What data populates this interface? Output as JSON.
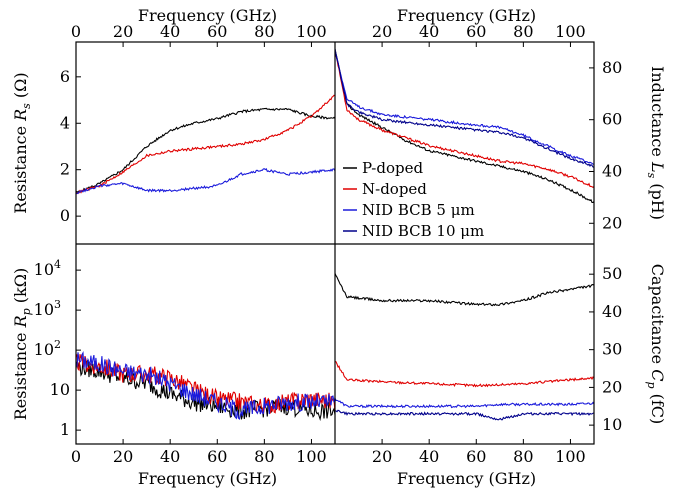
{
  "chart_data": [
    {
      "panel": "top-left",
      "type": "line",
      "xlabel": "Frequency (GHz)",
      "ylabel": "Resistance R_s (Ω)",
      "xlim": [
        0,
        110
      ],
      "ylim": [
        -1.2,
        7.5
      ],
      "xticks": [
        0,
        20,
        40,
        60,
        80,
        100
      ],
      "yticks": [
        0,
        2,
        4,
        6
      ],
      "series": [
        {
          "color": "#000000",
          "x": [
            0,
            10,
            20,
            30,
            40,
            50,
            60,
            70,
            80,
            90,
            100,
            110
          ],
          "y": [
            1.0,
            1.4,
            2.0,
            3.0,
            3.7,
            4.0,
            4.2,
            4.5,
            4.6,
            4.6,
            4.3,
            4.2
          ]
        },
        {
          "color": "#e00000",
          "x": [
            0,
            10,
            20,
            30,
            40,
            50,
            60,
            70,
            80,
            90,
            100,
            110
          ],
          "y": [
            1.0,
            1.3,
            1.9,
            2.6,
            2.8,
            2.9,
            3.0,
            3.1,
            3.3,
            3.7,
            4.3,
            5.2
          ]
        },
        {
          "color": "#1a1adb",
          "x": [
            0,
            10,
            20,
            30,
            40,
            50,
            60,
            70,
            80,
            90,
            100,
            110
          ],
          "y": [
            1.0,
            1.3,
            1.4,
            1.1,
            1.1,
            1.2,
            1.3,
            1.8,
            2.0,
            1.8,
            1.9,
            2.0
          ]
        }
      ]
    },
    {
      "panel": "top-right",
      "type": "line",
      "xlabel": "Frequency (GHz)",
      "ylabel": "Inductance L_s (pH)",
      "xlim": [
        0,
        110
      ],
      "ylim": [
        12,
        90
      ],
      "xticks": [
        20,
        40,
        60,
        80,
        100
      ],
      "yticks": [
        20,
        40,
        60,
        80
      ],
      "series": [
        {
          "name": "P-doped",
          "color": "#000000",
          "x": [
            0,
            5,
            10,
            20,
            30,
            40,
            50,
            60,
            70,
            80,
            90,
            100,
            110
          ],
          "y": [
            87,
            66,
            62,
            57,
            52,
            48,
            46,
            44,
            42,
            40,
            37,
            33,
            28
          ]
        },
        {
          "name": "N-doped",
          "color": "#e00000",
          "x": [
            0,
            5,
            10,
            20,
            30,
            40,
            50,
            60,
            70,
            80,
            90,
            100,
            110
          ],
          "y": [
            87,
            64,
            60,
            56,
            53,
            50,
            48,
            46,
            44,
            43,
            41,
            38,
            34
          ]
        },
        {
          "name": "NID BCB 5 μm",
          "color": "#1a1adb",
          "x": [
            0,
            5,
            10,
            20,
            30,
            40,
            50,
            60,
            70,
            80,
            90,
            100,
            110
          ],
          "y": [
            87,
            68,
            65,
            62,
            61,
            60,
            59,
            58,
            57,
            54,
            50,
            46,
            43
          ]
        },
        {
          "name": "NID BCB 10 μm",
          "color": "#00008b",
          "x": [
            0,
            5,
            10,
            20,
            30,
            40,
            50,
            60,
            70,
            80,
            90,
            100,
            110
          ],
          "y": [
            87,
            66,
            63,
            60,
            59,
            58,
            57,
            56,
            55,
            53,
            49,
            45,
            42
          ]
        }
      ],
      "legend": "bottom-left"
    },
    {
      "panel": "bottom-left",
      "type": "line",
      "xlabel": "Frequency (GHz)",
      "ylabel": "Resistance R_p (kΩ)",
      "xlim": [
        0,
        110
      ],
      "ylim": [
        0.45,
        45000
      ],
      "yscale": "log",
      "xticks": [
        0,
        20,
        40,
        60,
        80,
        100
      ],
      "yticks": [
        1,
        10,
        100,
        1000,
        10000
      ],
      "yticklabels": [
        "1",
        "10",
        "10^2",
        "10^3",
        "10^4"
      ],
      "series": [
        {
          "color": "#000000",
          "x": [
            0,
            10,
            20,
            30,
            40,
            50,
            60,
            70,
            80,
            90,
            100,
            110
          ],
          "y": [
            40,
            30,
            20,
            15,
            8,
            5,
            4,
            3,
            3.5,
            4,
            3,
            3
          ]
        },
        {
          "color": "#e00000",
          "x": [
            0,
            10,
            20,
            30,
            40,
            50,
            60,
            70,
            80,
            90,
            100,
            110
          ],
          "y": [
            50,
            40,
            25,
            25,
            20,
            10,
            6,
            5,
            4,
            5,
            6,
            5
          ]
        },
        {
          "color": "#1a1adb",
          "x": [
            0,
            10,
            20,
            30,
            40,
            50,
            60,
            70,
            80,
            90,
            100,
            110
          ],
          "y": [
            60,
            45,
            30,
            25,
            15,
            8,
            5,
            3,
            4,
            5,
            5,
            5
          ]
        }
      ]
    },
    {
      "panel": "bottom-right",
      "type": "line",
      "xlabel": "Frequency (GHz)",
      "ylabel": "Capacitance C_p (fC)",
      "xlim": [
        0,
        110
      ],
      "ylim": [
        5,
        58
      ],
      "xticks": [
        20,
        40,
        60,
        80,
        100
      ],
      "yticks": [
        10,
        20,
        30,
        40,
        50
      ],
      "series": [
        {
          "color": "#000000",
          "x": [
            0,
            5,
            20,
            40,
            60,
            70,
            80,
            90,
            100,
            110
          ],
          "y": [
            50,
            44,
            43,
            43,
            42,
            42,
            43,
            45,
            46,
            47
          ]
        },
        {
          "color": "#e00000",
          "x": [
            0,
            5,
            20,
            40,
            60,
            70,
            80,
            90,
            100,
            110
          ],
          "y": [
            27,
            22,
            21.5,
            21,
            20.5,
            20.7,
            21,
            21.5,
            22,
            22.5
          ]
        },
        {
          "color": "#1a1adb",
          "x": [
            0,
            5,
            20,
            40,
            60,
            70,
            80,
            90,
            100,
            110
          ],
          "y": [
            17,
            15,
            15,
            15,
            15,
            15.5,
            15.5,
            15.5,
            15.5,
            15.8
          ]
        },
        {
          "color": "#00008b",
          "x": [
            0,
            5,
            20,
            40,
            60,
            70,
            80,
            90,
            100,
            110
          ],
          "y": [
            14,
            13,
            13,
            13,
            13,
            11.5,
            13,
            13,
            13,
            13
          ]
        }
      ]
    }
  ]
}
